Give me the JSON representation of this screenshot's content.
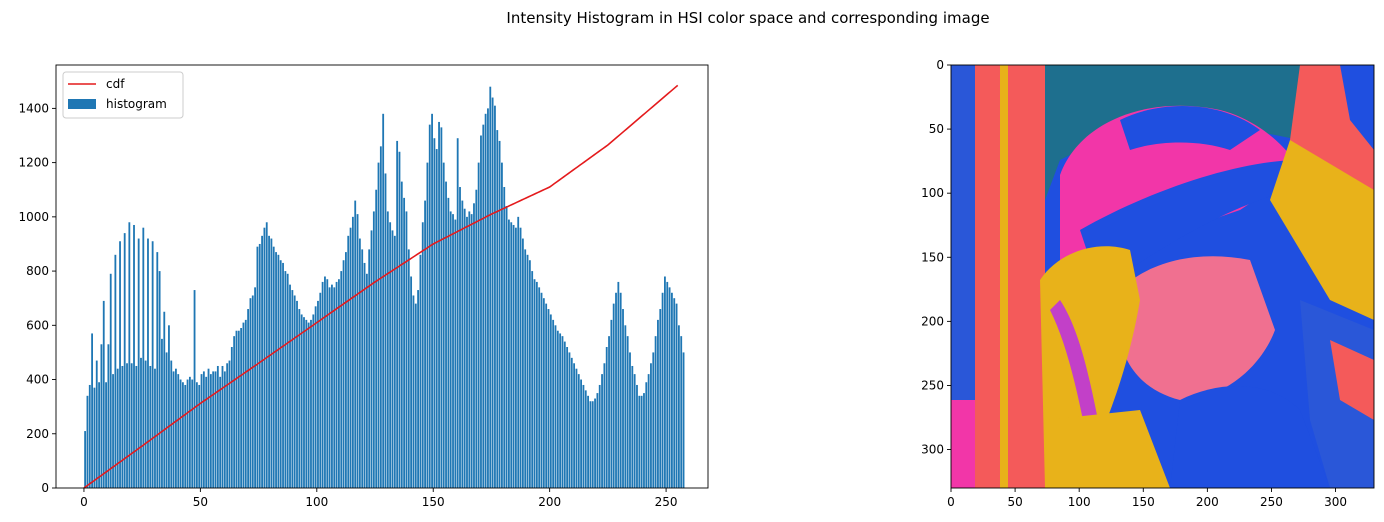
{
  "figure": {
    "suptitle": "Intensity Histogram in HSI color space and corresponding image"
  },
  "chart_data": [
    {
      "type": "bar",
      "subtype": "histogram with cdf line overlay",
      "title": "",
      "xlabel": "",
      "ylabel": "",
      "xlim": [
        -12,
        268
      ],
      "ylim": [
        0,
        1560
      ],
      "xticks": [
        0,
        50,
        100,
        150,
        200,
        250
      ],
      "yticks": [
        0,
        200,
        400,
        600,
        800,
        1000,
        1200,
        1400
      ],
      "grid": false,
      "legend": {
        "position": "upper-left",
        "entries": [
          "cdf",
          "histogram"
        ]
      },
      "colors": {
        "histogram": "#1f77b4",
        "cdf": "#e41a1c"
      },
      "series": [
        {
          "name": "histogram",
          "kind": "bar",
          "x_start": 0,
          "x_step": 1,
          "values": [
            210,
            340,
            380,
            570,
            370,
            470,
            390,
            530,
            690,
            390,
            530,
            790,
            420,
            860,
            440,
            910,
            450,
            940,
            460,
            980,
            460,
            970,
            450,
            920,
            480,
            960,
            470,
            920,
            450,
            910,
            440,
            870,
            800,
            550,
            650,
            500,
            600,
            470,
            430,
            440,
            420,
            400,
            390,
            380,
            400,
            410,
            400,
            730,
            390,
            380,
            420,
            430,
            410,
            440,
            420,
            430,
            430,
            450,
            410,
            450,
            430,
            460,
            470,
            520,
            560,
            580,
            580,
            590,
            610,
            620,
            660,
            700,
            710,
            740,
            890,
            900,
            930,
            960,
            980,
            930,
            920,
            890,
            870,
            860,
            840,
            830,
            800,
            790,
            750,
            730,
            710,
            690,
            660,
            640,
            630,
            620,
            610,
            620,
            640,
            670,
            690,
            720,
            760,
            780,
            770,
            740,
            750,
            740,
            760,
            770,
            800,
            840,
            870,
            930,
            960,
            1000,
            1060,
            1010,
            920,
            880,
            830,
            790,
            880,
            950,
            1020,
            1100,
            1200,
            1260,
            1380,
            1160,
            1020,
            980,
            950,
            930,
            1280,
            1240,
            1130,
            1070,
            1020,
            880,
            780,
            710,
            680,
            730,
            860,
            980,
            1060,
            1200,
            1340,
            1380,
            1290,
            1250,
            1350,
            1330,
            1200,
            1130,
            1070,
            1020,
            1010,
            990,
            1290,
            1110,
            1060,
            1030,
            1000,
            1020,
            1010,
            1050,
            1100,
            1200,
            1300,
            1340,
            1380,
            1400,
            1480,
            1440,
            1410,
            1320,
            1280,
            1200,
            1110,
            1040,
            990,
            980,
            970,
            960,
            1000,
            960,
            920,
            880,
            860,
            840,
            800,
            770,
            760,
            740,
            720,
            700,
            680,
            660,
            640,
            620,
            600,
            580,
            570,
            560,
            540,
            520,
            500,
            480,
            460,
            440,
            420,
            400,
            380,
            360,
            340,
            320,
            320,
            330,
            350,
            380,
            420,
            460,
            520,
            560,
            620,
            680,
            720,
            760,
            720,
            660,
            600,
            560,
            500,
            450,
            420,
            380,
            340,
            340,
            350,
            390,
            420,
            460,
            500,
            560,
            620,
            660,
            720,
            780,
            760,
            740,
            720,
            700,
            680,
            600,
            560,
            500
          ]
        },
        {
          "name": "cdf",
          "kind": "line",
          "x": [
            0,
            25,
            50,
            75,
            100,
            125,
            150,
            175,
            200,
            225,
            255
          ],
          "values": [
            0,
            155,
            312,
            460,
            610,
            760,
            900,
            1010,
            1110,
            1265,
            1485
          ]
        }
      ]
    },
    {
      "type": "image",
      "title": "",
      "xlim": [
        0,
        330
      ],
      "ylim": [
        330,
        0
      ],
      "xticks": [
        0,
        50,
        100,
        150,
        200,
        250,
        300
      ],
      "yticks": [
        0,
        50,
        100,
        150,
        200,
        250,
        300
      ],
      "palette": [
        "#f45a5a",
        "#1f4fe0",
        "#e8b21a",
        "#f236a8",
        "#1e6f8e",
        "#c8c22a"
      ]
    }
  ]
}
